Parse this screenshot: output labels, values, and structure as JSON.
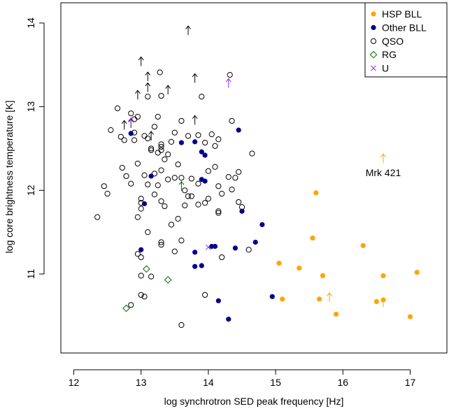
{
  "chart_data": {
    "type": "scatter",
    "xlabel": "log synchrotron SED peak frequency [Hz]",
    "ylabel": "log core brightness temperature [K]",
    "xlim": [
      11.9,
      17.5
    ],
    "ylim": [
      10.05,
      14.3
    ],
    "xticks": [
      12,
      13,
      14,
      15,
      16,
      17
    ],
    "yticks": [
      11,
      12,
      13,
      14
    ],
    "legend_position": "top-right",
    "legend": [
      {
        "name": "HSP BLL",
        "marker": "filled-circle",
        "color": "#FFA500"
      },
      {
        "name": "Other BLL",
        "marker": "filled-circle",
        "color": "#00008B"
      },
      {
        "name": "QSO",
        "marker": "open-circle",
        "color": "#000000"
      },
      {
        "name": "RG",
        "marker": "open-diamond",
        "color": "#006400"
      },
      {
        "name": "U",
        "marker": "cross",
        "color": "#A020F0"
      }
    ],
    "annotations": [
      {
        "text": "Mrk 421",
        "x": 16.6,
        "y": 12.21
      }
    ],
    "series": [
      {
        "name": "HSP BLL",
        "points": [
          [
            15.6,
            11.97
          ],
          [
            15.55,
            11.43
          ],
          [
            16.3,
            11.34
          ],
          [
            15.05,
            11.13
          ],
          [
            15.35,
            11.07
          ],
          [
            15.7,
            10.98
          ],
          [
            16.6,
            10.98
          ],
          [
            17.1,
            11.02
          ],
          [
            15.1,
            10.7
          ],
          [
            15.65,
            10.7
          ],
          [
            16.5,
            10.67
          ],
          [
            16.6,
            10.69
          ],
          [
            15.9,
            10.52
          ],
          [
            17.0,
            10.49
          ]
        ],
        "limits": [
          [
            16.6,
            12.38
          ],
          [
            15.8,
            10.72
          ],
          [
            16.6,
            10.66
          ]
        ]
      },
      {
        "name": "Other BLL",
        "points": [
          [
            12.85,
            12.68
          ],
          [
            13.6,
            12.57
          ],
          [
            13.8,
            12.58
          ],
          [
            14.45,
            12.72
          ],
          [
            13.9,
            12.46
          ],
          [
            13.95,
            12.42
          ],
          [
            13.15,
            12.17
          ],
          [
            13.9,
            12.13
          ],
          [
            13.95,
            12.11
          ],
          [
            14.5,
            11.75
          ],
          [
            14.8,
            11.59
          ],
          [
            13.05,
            11.84
          ],
          [
            13.0,
            11.29
          ],
          [
            13.8,
            11.26
          ],
          [
            14.05,
            11.33
          ],
          [
            14.1,
            11.33
          ],
          [
            14.4,
            11.31
          ],
          [
            14.7,
            11.38
          ],
          [
            13.8,
            11.09
          ],
          [
            13.9,
            11.1
          ],
          [
            14.15,
            10.68
          ],
          [
            14.3,
            10.46
          ],
          [
            14.95,
            10.73
          ]
        ]
      },
      {
        "name": "QSO",
        "points": [
          [
            12.35,
            11.68
          ],
          [
            12.5,
            11.96
          ],
          [
            12.45,
            12.05
          ],
          [
            12.55,
            12.72
          ],
          [
            12.65,
            12.98
          ],
          [
            12.7,
            12.64
          ],
          [
            12.72,
            12.27
          ],
          [
            12.75,
            12.6
          ],
          [
            12.78,
            12.17
          ],
          [
            12.85,
            12.92
          ],
          [
            12.9,
            12.85
          ],
          [
            12.85,
            12.08
          ],
          [
            12.9,
            12.6
          ],
          [
            12.95,
            12.32
          ],
          [
            12.95,
            12.88
          ],
          [
            12.95,
            11.68
          ],
          [
            13.0,
            11.9
          ],
          [
            13.0,
            11.85
          ],
          [
            13.0,
            11.78
          ],
          [
            13.05,
            12.18
          ],
          [
            13.05,
            12.65
          ],
          [
            13.1,
            12.62
          ],
          [
            13.1,
            12.07
          ],
          [
            13.1,
            11.5
          ],
          [
            13.15,
            12.5
          ],
          [
            13.15,
            12.48
          ],
          [
            13.2,
            12.76
          ],
          [
            13.2,
            12.2
          ],
          [
            13.2,
            11.95
          ],
          [
            13.25,
            12.88
          ],
          [
            13.25,
            12.45
          ],
          [
            13.25,
            12.06
          ],
          [
            13.3,
            12.55
          ],
          [
            13.3,
            12.52
          ],
          [
            13.3,
            12.48
          ],
          [
            13.3,
            12.24
          ],
          [
            13.3,
            11.87
          ],
          [
            13.3,
            11.38
          ],
          [
            13.3,
            11.35
          ],
          [
            13.35,
            12.37
          ],
          [
            13.35,
            11.81
          ],
          [
            13.4,
            12.43
          ],
          [
            13.4,
            12.13
          ],
          [
            13.45,
            12.58
          ],
          [
            13.45,
            11.59
          ],
          [
            13.5,
            12.69
          ],
          [
            13.5,
            12.15
          ],
          [
            13.5,
            11.27
          ],
          [
            13.55,
            12.31
          ],
          [
            13.55,
            11.66
          ],
          [
            13.6,
            12.83
          ],
          [
            13.6,
            12.15
          ],
          [
            13.65,
            12.0
          ],
          [
            13.65,
            11.82
          ],
          [
            13.7,
            12.65
          ],
          [
            13.7,
            11.93
          ],
          [
            13.75,
            12.14
          ],
          [
            13.75,
            11.93
          ],
          [
            13.85,
            12.66
          ],
          [
            13.85,
            12.08
          ],
          [
            13.85,
            11.83
          ],
          [
            13.9,
            13.12
          ],
          [
            13.95,
            12.57
          ],
          [
            13.95,
            11.85
          ],
          [
            14.0,
            12.23
          ],
          [
            14.0,
            11.9
          ],
          [
            14.05,
            12.67
          ],
          [
            14.1,
            12.53
          ],
          [
            14.1,
            12.28
          ],
          [
            14.15,
            12.61
          ],
          [
            14.15,
            12.05
          ],
          [
            14.15,
            11.73
          ],
          [
            14.15,
            11.75
          ],
          [
            14.2,
            11.96
          ],
          [
            14.3,
            12.16
          ],
          [
            14.35,
            12.83
          ],
          [
            14.35,
            12.01
          ],
          [
            14.4,
            12.15
          ],
          [
            14.45,
            12.22
          ],
          [
            14.45,
            11.86
          ],
          [
            14.5,
            11.8
          ],
          [
            14.65,
            12.44
          ],
          [
            14.6,
            11.29
          ],
          [
            14.32,
            13.38
          ],
          [
            13.28,
            13.41
          ],
          [
            12.9,
            12.69
          ],
          [
            13.6,
            11.4
          ],
          [
            13.3,
            13.13
          ],
          [
            13.05,
            10.73
          ],
          [
            13.0,
            10.75
          ],
          [
            12.85,
            10.63
          ],
          [
            12.95,
            11.24
          ],
          [
            13.0,
            11.2
          ],
          [
            13.0,
            10.98
          ],
          [
            13.15,
            10.97
          ],
          [
            13.95,
            10.75
          ],
          [
            13.6,
            10.39
          ],
          [
            13.1,
            13.12
          ],
          [
            14.2,
            11.2
          ]
        ],
        "limits": [
          [
            13.0,
            13.54
          ],
          [
            13.1,
            13.36
          ],
          [
            13.1,
            13.23
          ],
          [
            12.95,
            13.14
          ],
          [
            13.4,
            13.2
          ],
          [
            13.8,
            13.34
          ],
          [
            13.7,
            13.91
          ],
          [
            12.75,
            12.78
          ],
          [
            12.85,
            12.8
          ],
          [
            13.15,
            12.65
          ],
          [
            13.8,
            12.84
          ]
        ]
      },
      {
        "name": "RG",
        "points": [
          [
            13.08,
            11.06
          ],
          [
            12.78,
            10.59
          ],
          [
            13.4,
            10.93
          ]
        ],
        "limits": [
          [
            13.6,
            12.05
          ]
        ]
      },
      {
        "name": "U",
        "points": [
          [
            14.0,
            11.32
          ]
        ],
        "limits": [
          [
            12.85,
            12.81
          ],
          [
            14.3,
            13.28
          ]
        ]
      }
    ]
  }
}
